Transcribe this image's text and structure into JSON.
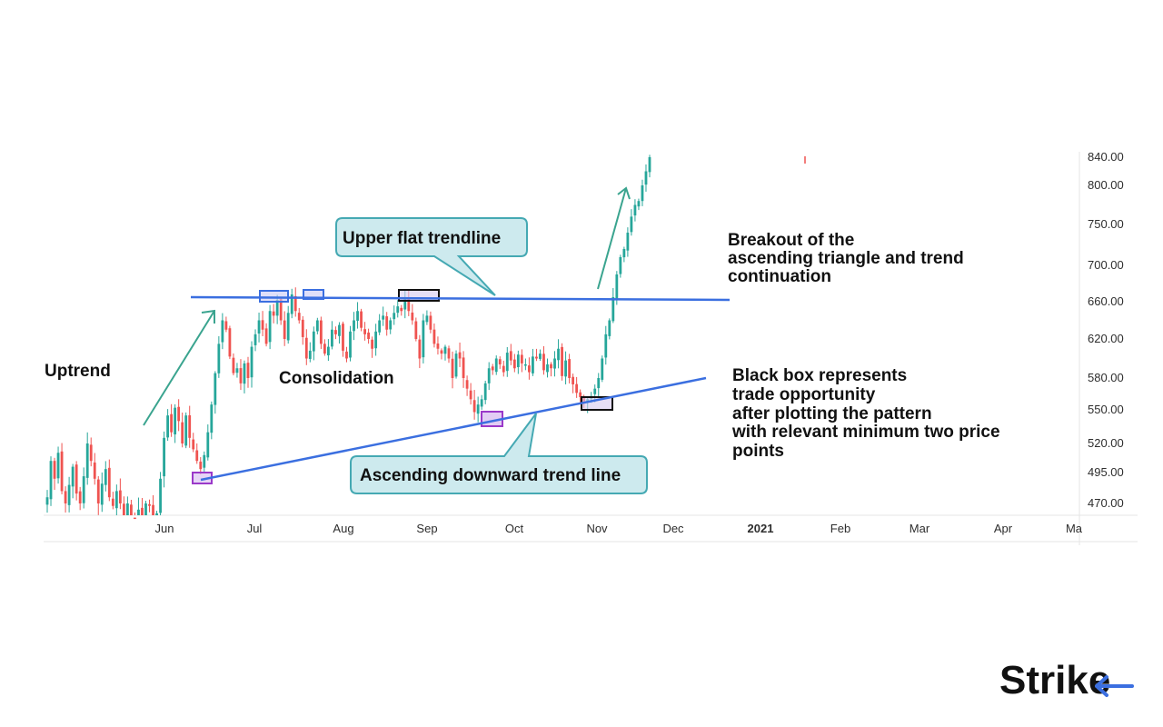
{
  "chart_data": {
    "type": "candlestick",
    "x_ticks": [
      "Jun",
      "Jul",
      "Aug",
      "Sep",
      "Oct",
      "Nov",
      "Dec",
      "2021",
      "Feb",
      "Mar",
      "Apr",
      "Ma"
    ],
    "y_ticks": [
      "840.00",
      "800.00",
      "750.00",
      "700.00",
      "660.00",
      "620.00",
      "580.00",
      "550.00",
      "520.00",
      "495.00",
      "470.00"
    ],
    "y_tick_values": [
      840,
      800,
      750,
      700,
      660,
      620,
      580,
      550,
      520,
      495,
      470
    ],
    "ylim": [
      455,
      840
    ],
    "colors": {
      "up": "#26a69a",
      "down": "#ef5350",
      "trendline": "#3b6fe0",
      "arrow": "#3aa48f",
      "callout_fill": "#cdeaee",
      "callout_stroke": "#45a9b3"
    },
    "candles_close": [
      475,
      505,
      490,
      512,
      480,
      470,
      485,
      500,
      478,
      470,
      492,
      520,
      505,
      490,
      470,
      486,
      498,
      475,
      468,
      480,
      470,
      455,
      470,
      460,
      448,
      465,
      455,
      470,
      468,
      452,
      462,
      490,
      525,
      545,
      530,
      552,
      540,
      520,
      545,
      525,
      515,
      505,
      498,
      510,
      530,
      555,
      585,
      615,
      640,
      630,
      602,
      585,
      590,
      575,
      595,
      580,
      612,
      625,
      640,
      630,
      615,
      650,
      645,
      662,
      640,
      620,
      648,
      668,
      650,
      640,
      622,
      600,
      608,
      628,
      640,
      615,
      605,
      612,
      630,
      625,
      635,
      608,
      600,
      628,
      640,
      650,
      632,
      625,
      620,
      610,
      628,
      640,
      645,
      630,
      640,
      648,
      655,
      650,
      665,
      650,
      640,
      620,
      600,
      640,
      645,
      630,
      615,
      610,
      605,
      612,
      600,
      580,
      605,
      600,
      580,
      570,
      560,
      548,
      555,
      560,
      575,
      590,
      588,
      600,
      594,
      586,
      606,
      598,
      590,
      604,
      595,
      594,
      586,
      602,
      600,
      605,
      588,
      594,
      590,
      600,
      610,
      582,
      598,
      580,
      574,
      566,
      562,
      558,
      560,
      563,
      570,
      580,
      600,
      625,
      640,
      665,
      690,
      710,
      720,
      740,
      760,
      775,
      780,
      800,
      820,
      840
    ],
    "annotations": {
      "uptrend": "Uptrend",
      "consolidation": "Consolidation",
      "breakout": [
        "Breakout of the",
        "ascending triangle and trend",
        "continuation"
      ],
      "black_box": [
        "Black box represents",
        "trade opportunity",
        "after plotting the pattern",
        "with relevant minimum two price",
        "points"
      ],
      "upper_callout": "Upper flat trendline",
      "lower_callout": "Ascending downward trend line"
    }
  },
  "brand": {
    "logo_text_main": "Stri",
    "logo_text_end": "ke"
  }
}
